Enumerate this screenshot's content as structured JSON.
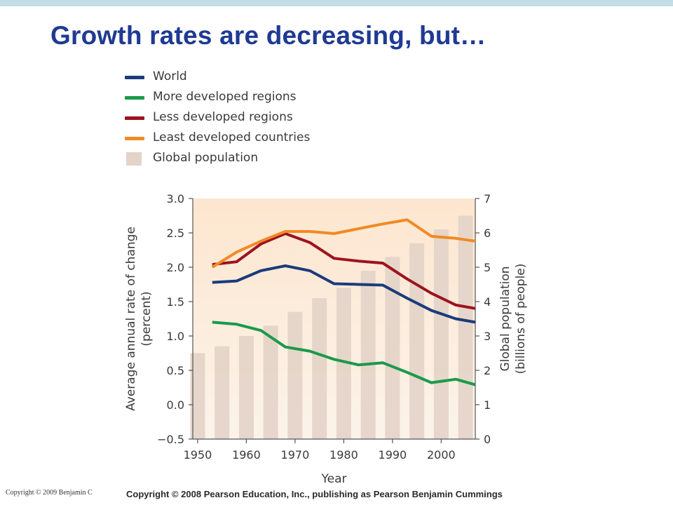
{
  "slide": {
    "title": "Growth rates are decreasing, but…",
    "copyright_left": "Copyright © 2009 Benjamin C",
    "copyright_right": "Copyright © 2008 Pearson Education, Inc., publishing as Pearson Benjamin Cummings"
  },
  "colors": {
    "title": "#1f3a93",
    "top_bar": "#c3dde6",
    "plot_background_top": "#fde6cf",
    "plot_background_bottom": "#fbf3ea"
  },
  "chart_data": {
    "type": "line",
    "xlabel": "Year",
    "ylabel": "Average annual rate of change (percent)",
    "y2label": "Global population (billions of people)",
    "xlim": [
      1949,
      2007
    ],
    "ylim": [
      -0.5,
      3.0
    ],
    "y2lim": [
      0,
      7
    ],
    "x_ticks": [
      1950,
      1960,
      1970,
      1980,
      1990,
      2000
    ],
    "y_ticks": [
      "−0.5",
      "0.0",
      "0.5",
      "1.0",
      "1.5",
      "2.0",
      "2.5",
      "3.0"
    ],
    "y2_ticks": [
      "0",
      "1",
      "2",
      "3",
      "4",
      "5",
      "6",
      "7"
    ],
    "grid": false,
    "legend_position": "top-left",
    "bars": {
      "name": "Global population",
      "color": "#e3d3c8",
      "x": [
        1950,
        1955,
        1960,
        1965,
        1970,
        1975,
        1980,
        1985,
        1990,
        1995,
        2000,
        2005
      ],
      "values": [
        2.5,
        2.7,
        3.0,
        3.3,
        3.7,
        4.1,
        4.4,
        4.9,
        5.3,
        5.7,
        6.1,
        6.5
      ]
    },
    "series": [
      {
        "name": "World",
        "color": "#1b3b7c",
        "x": [
          1953,
          1958,
          1963,
          1968,
          1973,
          1978,
          1983,
          1988,
          1993,
          1998,
          2003,
          2007
        ],
        "values": [
          1.78,
          1.8,
          1.95,
          2.02,
          1.95,
          1.76,
          1.75,
          1.74,
          1.55,
          1.37,
          1.25,
          1.2
        ]
      },
      {
        "name": "More developed regions",
        "color": "#1b9a4b",
        "x": [
          1953,
          1958,
          1963,
          1968,
          1973,
          1978,
          1983,
          1988,
          1993,
          1998,
          2003,
          2007
        ],
        "values": [
          1.2,
          1.17,
          1.08,
          0.84,
          0.78,
          0.66,
          0.58,
          0.61,
          0.47,
          0.32,
          0.37,
          0.29
        ]
      },
      {
        "name": "Less developed regions",
        "color": "#9c1320",
        "x": [
          1953,
          1958,
          1963,
          1968,
          1973,
          1978,
          1983,
          1988,
          1993,
          1998,
          2003,
          2007
        ],
        "values": [
          2.04,
          2.08,
          2.34,
          2.49,
          2.36,
          2.13,
          2.09,
          2.06,
          1.83,
          1.62,
          1.45,
          1.4
        ]
      },
      {
        "name": "Least developed countries",
        "color": "#f08a24",
        "x": [
          1953,
          1958,
          1963,
          1968,
          1973,
          1978,
          1983,
          1988,
          1993,
          1998,
          2003,
          2007
        ],
        "values": [
          2.0,
          2.22,
          2.38,
          2.52,
          2.52,
          2.49,
          2.56,
          2.63,
          2.69,
          2.45,
          2.42,
          2.38
        ]
      }
    ]
  }
}
